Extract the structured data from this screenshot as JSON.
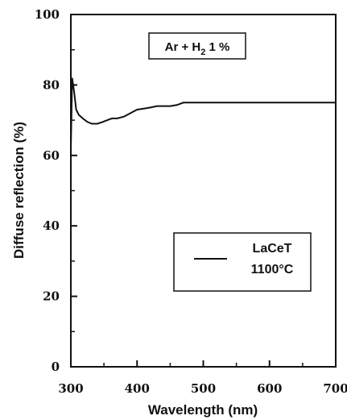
{
  "chart_data": {
    "type": "line",
    "xlabel": "Wavelength (nm)",
    "ylabel": "Diffuse reflection (%)",
    "xlim": [
      300,
      700
    ],
    "ylim": [
      0,
      100
    ],
    "xticks": [
      300,
      400,
      500,
      600,
      700
    ],
    "yticks": [
      0,
      20,
      40,
      60,
      80,
      100
    ],
    "grid": false,
    "legend_position": "right",
    "annotation": {
      "pre": "Ar + H",
      "sub": "2",
      "post": " 1 %"
    },
    "series": [
      {
        "name_lines": [
          "LaCeT",
          "1100°C"
        ],
        "color": "#111111",
        "x": [
          300,
          302,
          305,
          308,
          312,
          318,
          325,
          332,
          340,
          348,
          355,
          362,
          370,
          380,
          390,
          400,
          410,
          420,
          430,
          440,
          450,
          460,
          470,
          480,
          500,
          550,
          600,
          650,
          700
        ],
        "y": [
          62,
          82,
          78,
          73,
          71.5,
          70.5,
          69.5,
          69,
          69,
          69.5,
          70,
          70.5,
          70.5,
          71,
          72,
          73,
          73.3,
          73.6,
          74,
          74,
          74,
          74.3,
          75,
          75,
          75,
          75,
          75,
          75,
          75
        ]
      }
    ]
  }
}
